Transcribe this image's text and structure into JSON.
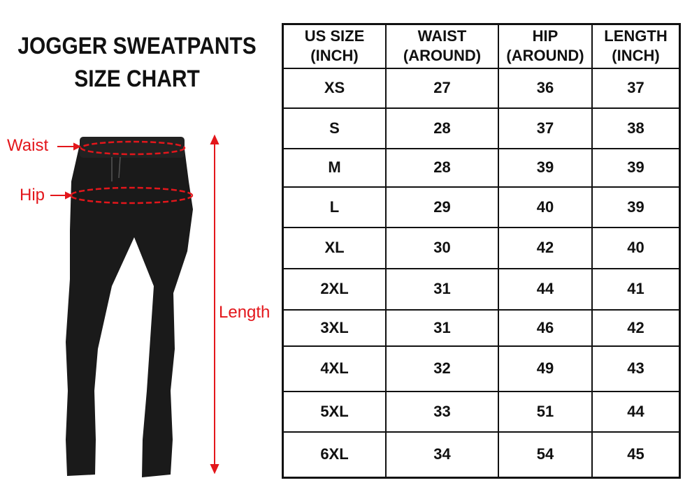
{
  "title": {
    "line1": "JOGGER SWEATPANTS",
    "line2": "SIZE CHART"
  },
  "labels": {
    "waist": "Waist",
    "hip": "Hip",
    "length": "Length"
  },
  "colors": {
    "annotation": "#e3161b",
    "pants": "#1a1a1a"
  },
  "table": {
    "headers": [
      {
        "line1": "US SIZE",
        "line2": "(INCH)"
      },
      {
        "line1": "WAIST",
        "line2": "(AROUND)"
      },
      {
        "line1": "HIP",
        "line2": "(AROUND)"
      },
      {
        "line1": "LENGTH",
        "line2": "(INCH)"
      }
    ],
    "rows": [
      [
        "XS",
        "27",
        "36",
        "37"
      ],
      [
        "S",
        "28",
        "37",
        "38"
      ],
      [
        "M",
        "28",
        "39",
        "39"
      ],
      [
        "L",
        "29",
        "40",
        "39"
      ],
      [
        "XL",
        "30",
        "42",
        "40"
      ],
      [
        "2XL",
        "31",
        "44",
        "41"
      ],
      [
        "3XL",
        "31",
        "46",
        "42"
      ],
      [
        "4XL",
        "32",
        "49",
        "43"
      ],
      [
        "5XL",
        "33",
        "51",
        "44"
      ],
      [
        "6XL",
        "34",
        "54",
        "45"
      ]
    ]
  }
}
